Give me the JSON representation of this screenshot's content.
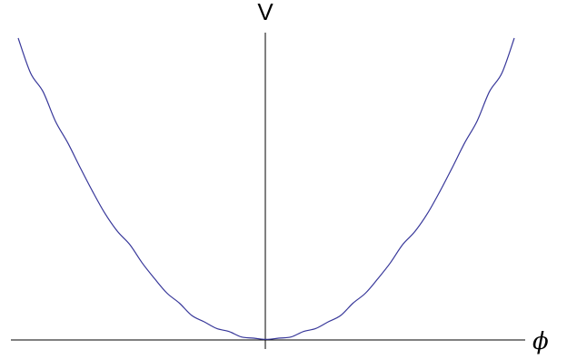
{
  "chart_data": {
    "type": "line",
    "title": "",
    "xlabel": "ϕ",
    "ylabel": "V",
    "xlim": [
      -1,
      1
    ],
    "ylim": [
      0,
      1
    ],
    "grid": false,
    "legend": "none",
    "ticks": "none",
    "series": [
      {
        "color": "#38389a",
        "x": [
          -1,
          -0.95,
          -0.9,
          -0.85,
          -0.8,
          -0.75,
          -0.7,
          -0.65,
          -0.6,
          -0.55,
          -0.5,
          -0.45,
          -0.4,
          -0.35,
          -0.3,
          -0.25,
          -0.2,
          -0.15,
          -0.1,
          -0.05,
          0,
          0.05,
          0.1,
          0.15,
          0.2,
          0.25,
          0.3,
          0.35,
          0.4,
          0.45,
          0.5,
          0.55,
          0.6,
          0.65,
          0.7,
          0.75,
          0.8,
          0.85,
          0.9,
          0.95,
          1
        ],
        "y": [
          1.0,
          0.884,
          0.823,
          0.725,
          0.653,
          0.571,
          0.492,
          0.419,
          0.36,
          0.316,
          0.255,
          0.203,
          0.155,
          0.122,
          0.081,
          0.06,
          0.038,
          0.028,
          0.01,
          0.006,
          0.002,
          0.006,
          0.01,
          0.028,
          0.038,
          0.06,
          0.081,
          0.122,
          0.155,
          0.203,
          0.255,
          0.316,
          0.36,
          0.419,
          0.492,
          0.571,
          0.653,
          0.725,
          0.823,
          0.884,
          1.0
        ]
      }
    ]
  }
}
